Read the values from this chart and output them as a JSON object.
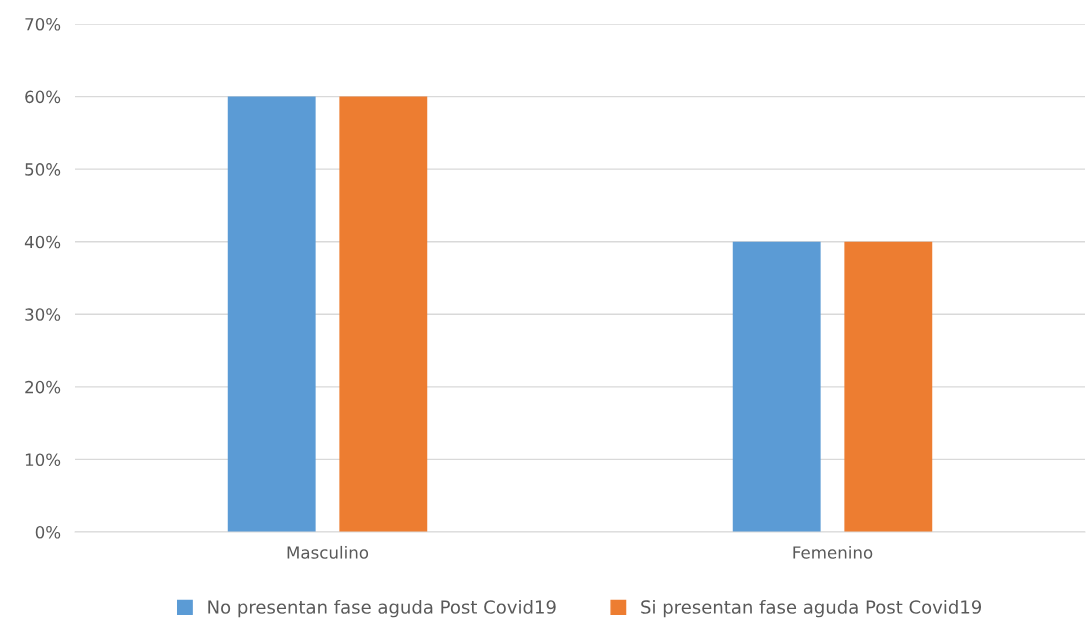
{
  "chart_data": {
    "type": "bar",
    "categories": [
      "Masculino",
      "Femenino"
    ],
    "series": [
      {
        "name": "No presentan fase aguda Post Covid19",
        "color": "#5b9bd5",
        "values": [
          60,
          40
        ]
      },
      {
        "name": "Si presentan fase aguda Post Covid19",
        "color": "#ed7d31",
        "values": [
          60,
          40
        ]
      }
    ],
    "ylim": [
      0,
      70
    ],
    "yticks": [
      {
        "value": 0,
        "label": "0%"
      },
      {
        "value": 10,
        "label": "10%"
      },
      {
        "value": 20,
        "label": "20%"
      },
      {
        "value": 30,
        "label": "30%"
      },
      {
        "value": 40,
        "label": "40%"
      },
      {
        "value": 50,
        "label": "50%"
      },
      {
        "value": 60,
        "label": "60%"
      },
      {
        "value": 70,
        "label": "70%"
      }
    ],
    "grid": "y",
    "legend": "bottom"
  }
}
